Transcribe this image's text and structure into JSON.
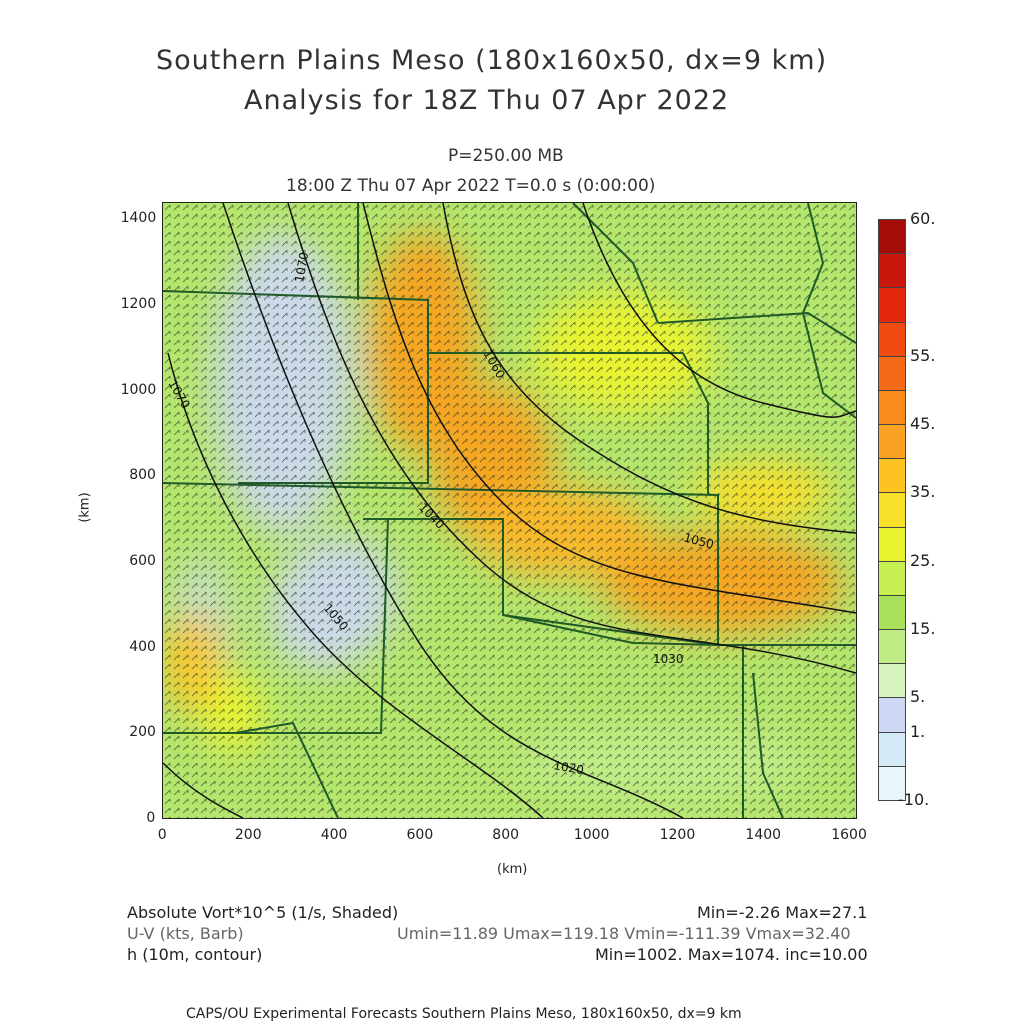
{
  "header": {
    "title_line1": "Southern Plains Meso (180x160x50, dx=9 km)",
    "title_line2": "Analysis for 18Z Thu 07 Apr 2022",
    "pressure": "P=250.00 MB",
    "time": "18:00 Z Thu 07 Apr 2022   T=0.0 s (0:00:00)"
  },
  "axes": {
    "x_unit": "(km)",
    "y_unit": "(km)",
    "x_ticks": [
      "0",
      "200",
      "400",
      "600",
      "800",
      "1000",
      "1200",
      "1400",
      "1600"
    ],
    "y_ticks": [
      "0",
      "200",
      "400",
      "600",
      "800",
      "1000",
      "1200",
      "1400"
    ],
    "x_range": [
      0,
      1620
    ],
    "y_range": [
      0,
      1440
    ]
  },
  "colorbar": {
    "labels": [
      "-10.",
      "1.",
      "5.",
      "15.",
      "25.",
      "35.",
      "45.",
      "55.",
      "60."
    ],
    "colors": [
      "#e6f6fb",
      "#d4eaf7",
      "#cdd8f5",
      "#d8f5c0",
      "#c0ec86",
      "#a8e05a",
      "#c8ef52",
      "#e8f330",
      "#f8df2a",
      "#fcc321",
      "#fba223",
      "#f98a1b",
      "#f46a16",
      "#ef4a12",
      "#e3280e",
      "#c9170b",
      "#a50d09"
    ]
  },
  "contours": [
    {
      "label": "1070",
      "value": 1070
    },
    {
      "label": "1060",
      "value": 1060
    },
    {
      "label": "1050",
      "value": 1050
    },
    {
      "label": "1040",
      "value": 1040
    },
    {
      "label": "1030",
      "value": 1030
    },
    {
      "label": "1020",
      "value": 1020
    },
    {
      "label": "1010",
      "value": 1010
    }
  ],
  "legend": {
    "field1": "Absolute Vort*10^5 (1/s, Shaded)",
    "field1_range": "Min=-2.26 Max=27.1",
    "field2": "U-V (kts, Barb)",
    "field2_range": "Umin=11.89 Umax=119.18 Vmin=-111.39 Vmax=32.40",
    "field3": "h (10m, contour)",
    "field3_range": "Min=1002. Max=1074. inc=10.00"
  },
  "footer": "CAPS/OU Experimental Forecasts  Southern Plains Meso, 180x160x50, dx=9 km"
}
